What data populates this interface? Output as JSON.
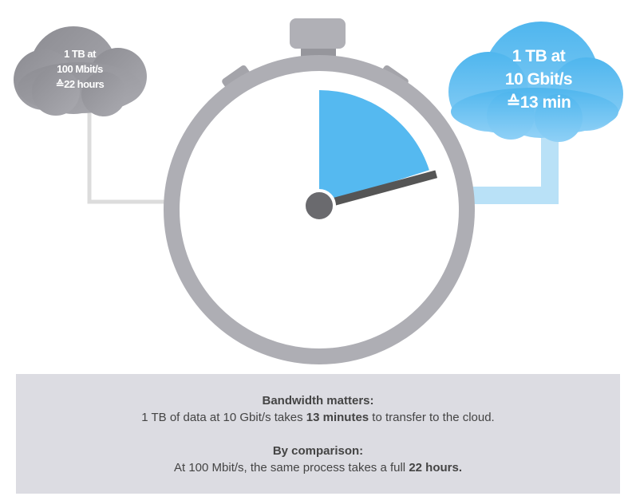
{
  "left_cloud": {
    "line1": "1 TB at",
    "line2": "100 Mbit/s",
    "line3": "≙22 hours",
    "color": "#9a9aa0"
  },
  "right_cloud": {
    "line1": "1 TB at",
    "line2": "10 Gbit/s",
    "line3": "≙13 min",
    "color": "#5bbcef"
  },
  "stopwatch": {
    "elapsed_fraction": 0.2,
    "ring_color": "#aeaeb4",
    "sector_color": "#55b9f0",
    "hand_color": "#555555"
  },
  "info": {
    "heading1": "Bandwidth matters:",
    "p1_pre": "1 TB of data at 10 Gbit/s takes ",
    "p1_bold": "13 minutes",
    "p1_post": " to transfer to the cloud.",
    "heading2": "By comparison:",
    "p2_pre": "At 100 Mbit/s, the same process takes a full ",
    "p2_bold": "22 hours."
  }
}
